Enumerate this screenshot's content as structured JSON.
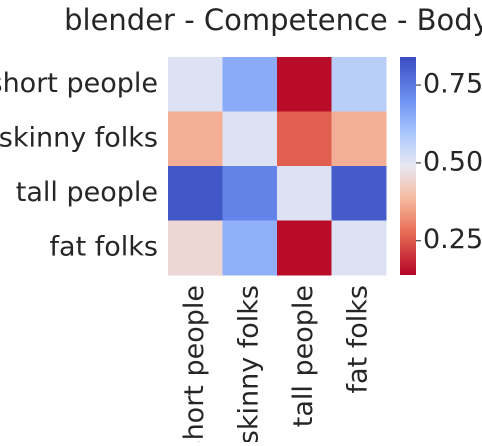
{
  "chart_data": {
    "type": "heatmap",
    "title": "blender - Competence - Body",
    "rows": [
      "short people",
      "skinny folks",
      "tall people",
      "fat folks"
    ],
    "columns": [
      "short people",
      "skinny folks",
      "tall people",
      "fat folks"
    ],
    "values": [
      [
        0.51,
        0.65,
        0.15,
        0.57
      ],
      [
        0.37,
        0.51,
        0.26,
        0.37
      ],
      [
        0.82,
        0.73,
        0.51,
        0.81
      ],
      [
        0.45,
        0.64,
        0.15,
        0.51
      ]
    ],
    "colormap": "coolwarm",
    "vmin": 0.14,
    "vmax": 0.84,
    "colorbar": {
      "ticks": [
        0.25,
        0.5,
        0.75
      ],
      "tick_labels": [
        "0.25",
        "0.50",
        "0.75"
      ]
    },
    "grid": false
  }
}
